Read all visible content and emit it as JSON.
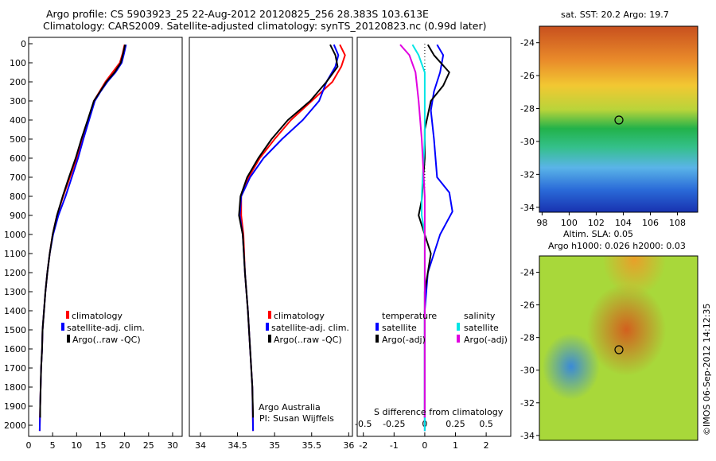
{
  "header": {
    "line1": "Argo profile: CS 5903923_25 22-Aug-2012 20120825_256 28.383S 103.613E",
    "line2": "Climatology: CARS2009. Satellite-adjusted climatology: synTS_20120823.nc (0.99d later)"
  },
  "map_sst": {
    "title": "sat. SST: 20.2 Argo: 19.7",
    "yticks": [
      -24,
      -26,
      -28,
      -30,
      -32,
      -34
    ],
    "xticks": [
      98,
      100,
      102,
      104,
      106,
      108
    ],
    "argo_marker": {
      "lon": 103.6,
      "lat": -28.4
    }
  },
  "map_sla": {
    "title1": "Altim. SLA: 0.05",
    "title2": "Argo h1000: 0.026 h2000: 0.03",
    "yticks": [
      -24,
      -26,
      -28,
      -30,
      -32,
      -34
    ]
  },
  "credit": "©IMOS 06-Sep-2012 14:12:35",
  "chart_data": [
    {
      "type": "line",
      "panel": "temperature",
      "ylim": [
        2050,
        0
      ],
      "xlim": [
        0,
        32
      ],
      "yticks": [
        0,
        100,
        200,
        300,
        400,
        500,
        600,
        700,
        800,
        900,
        1000,
        1100,
        1200,
        1300,
        1400,
        1500,
        1600,
        1700,
        1800,
        1900,
        2000
      ],
      "xticks": [
        0,
        5,
        10,
        15,
        20,
        25,
        30
      ],
      "legend": [
        "climatology",
        "satellite-adj. clim.",
        "Argo(..raw -QC)"
      ],
      "colors": {
        "climatology": "#ff0000",
        "satellite": "#0000ff",
        "argo": "#000000"
      },
      "series": [
        {
          "key": "climatology",
          "values": [
            [
              20.0,
              5
            ],
            [
              19.6,
              50
            ],
            [
              19.0,
              100
            ],
            [
              17.5,
              150
            ],
            [
              16.0,
              200
            ],
            [
              14.8,
              250
            ],
            [
              13.6,
              300
            ],
            [
              12.5,
              400
            ],
            [
              11.3,
              500
            ],
            [
              10.0,
              600
            ],
            [
              8.6,
              700
            ],
            [
              7.2,
              800
            ],
            [
              5.9,
              900
            ],
            [
              5.0,
              1000
            ],
            [
              4.4,
              1100
            ],
            [
              3.9,
              1200
            ],
            [
              3.5,
              1300
            ],
            [
              3.2,
              1400
            ],
            [
              2.9,
              1500
            ],
            [
              2.8,
              1600
            ],
            [
              2.6,
              1700
            ],
            [
              2.5,
              1800
            ],
            [
              2.4,
              1900
            ],
            [
              2.3,
              2030
            ]
          ]
        },
        {
          "key": "satellite",
          "values": [
            [
              20.3,
              5
            ],
            [
              19.9,
              50
            ],
            [
              19.4,
              100
            ],
            [
              18.1,
              150
            ],
            [
              16.4,
              200
            ],
            [
              15.0,
              250
            ],
            [
              13.8,
              300
            ],
            [
              12.6,
              400
            ],
            [
              11.4,
              500
            ],
            [
              10.3,
              600
            ],
            [
              9.0,
              700
            ],
            [
              7.7,
              800
            ],
            [
              6.2,
              900
            ],
            [
              5.1,
              1000
            ],
            [
              4.4,
              1100
            ],
            [
              3.9,
              1200
            ],
            [
              3.5,
              1300
            ],
            [
              3.2,
              1400
            ],
            [
              2.9,
              1500
            ],
            [
              2.8,
              1600
            ],
            [
              2.6,
              1700
            ],
            [
              2.5,
              1800
            ],
            [
              2.4,
              1900
            ],
            [
              2.3,
              2030
            ]
          ]
        },
        {
          "key": "argo",
          "values": [
            [
              20.1,
              5
            ],
            [
              19.7,
              50
            ],
            [
              19.2,
              100
            ],
            [
              17.9,
              150
            ],
            [
              16.2,
              200
            ],
            [
              14.9,
              250
            ],
            [
              13.6,
              300
            ],
            [
              12.3,
              400
            ],
            [
              11.0,
              500
            ],
            [
              9.8,
              600
            ],
            [
              8.4,
              700
            ],
            [
              7.1,
              800
            ],
            [
              5.9,
              900
            ],
            [
              5.0,
              1000
            ],
            [
              4.4,
              1100
            ],
            [
              3.9,
              1200
            ],
            [
              3.5,
              1300
            ],
            [
              3.2,
              1400
            ],
            [
              2.9,
              1500
            ],
            [
              2.8,
              1600
            ],
            [
              2.6,
              1700
            ],
            [
              2.5,
              1800
            ],
            [
              2.4,
              1900
            ],
            [
              2.4,
              1960
            ]
          ]
        }
      ]
    },
    {
      "type": "line",
      "panel": "salinity",
      "ylim": [
        2050,
        0
      ],
      "xlim": [
        33.85,
        36.05
      ],
      "xticks": [
        34,
        34.5,
        35,
        35.5,
        36
      ],
      "legend": [
        "climatology",
        "satellite-adj. clim.",
        "Argo(..raw -QC)"
      ],
      "annotation": [
        "Argo Australia",
        "PI: Susan Wijffels"
      ],
      "series": [
        {
          "key": "climatology",
          "values": [
            [
              35.88,
              5
            ],
            [
              35.95,
              60
            ],
            [
              35.9,
              120
            ],
            [
              35.78,
              200
            ],
            [
              35.5,
              300
            ],
            [
              35.22,
              400
            ],
            [
              35.0,
              500
            ],
            [
              34.8,
              600
            ],
            [
              34.65,
              700
            ],
            [
              34.55,
              800
            ],
            [
              34.55,
              900
            ],
            [
              34.58,
              1000
            ],
            [
              34.6,
              1200
            ],
            [
              34.64,
              1400
            ],
            [
              34.67,
              1600
            ],
            [
              34.7,
              1800
            ],
            [
              34.71,
              2030
            ]
          ]
        },
        {
          "key": "satellite",
          "values": [
            [
              35.8,
              5
            ],
            [
              35.86,
              60
            ],
            [
              35.82,
              120
            ],
            [
              35.7,
              200
            ],
            [
              35.6,
              300
            ],
            [
              35.38,
              400
            ],
            [
              35.1,
              500
            ],
            [
              34.85,
              600
            ],
            [
              34.67,
              700
            ],
            [
              34.55,
              800
            ],
            [
              34.53,
              900
            ],
            [
              34.57,
              1000
            ],
            [
              34.6,
              1200
            ],
            [
              34.64,
              1400
            ],
            [
              34.67,
              1600
            ],
            [
              34.7,
              1800
            ],
            [
              34.71,
              2030
            ]
          ]
        },
        {
          "key": "argo",
          "values": [
            [
              35.75,
              5
            ],
            [
              35.82,
              60
            ],
            [
              35.85,
              120
            ],
            [
              35.7,
              200
            ],
            [
              35.48,
              300
            ],
            [
              35.18,
              400
            ],
            [
              34.96,
              500
            ],
            [
              34.78,
              600
            ],
            [
              34.63,
              700
            ],
            [
              34.54,
              800
            ],
            [
              34.52,
              900
            ],
            [
              34.57,
              1000
            ],
            [
              34.6,
              1200
            ],
            [
              34.64,
              1400
            ],
            [
              34.67,
              1600
            ],
            [
              34.7,
              1800
            ],
            [
              34.71,
              1960
            ]
          ]
        }
      ]
    },
    {
      "type": "line",
      "panel": "difference",
      "ylim": [
        2050,
        0
      ],
      "xlim": [
        -2.2,
        2.8
      ],
      "xticks": [
        -2,
        -1,
        0,
        1,
        2
      ],
      "xticks2": [
        "-0.5",
        "-0.25",
        "0",
        "0.25",
        "0.5"
      ],
      "xlabel": "S difference from climatology",
      "legend_groups": [
        {
          "title": "temperature",
          "items": [
            "satellite",
            "Argo(-adj)"
          ]
        },
        {
          "title": "salinity",
          "items": [
            "satellite",
            "Argo(-adj)"
          ]
        }
      ],
      "series": [
        {
          "key": "t_sat",
          "values": [
            [
              0.4,
              5
            ],
            [
              0.6,
              60
            ],
            [
              0.5,
              150
            ],
            [
              0.3,
              250
            ],
            [
              0.2,
              350
            ],
            [
              0.3,
              500
            ],
            [
              0.4,
              700
            ],
            [
              0.8,
              780
            ],
            [
              0.9,
              880
            ],
            [
              0.5,
              1000
            ],
            [
              0.3,
              1100
            ],
            [
              0.1,
              1200
            ],
            [
              0.0,
              1400
            ],
            [
              0.0,
              1800
            ],
            [
              0.0,
              2030
            ]
          ]
        },
        {
          "key": "t_argo",
          "values": [
            [
              0.1,
              5
            ],
            [
              0.3,
              60
            ],
            [
              0.8,
              150
            ],
            [
              0.6,
              220
            ],
            [
              0.2,
              300
            ],
            [
              0.0,
              450
            ],
            [
              0.0,
              600
            ],
            [
              -0.1,
              820
            ],
            [
              -0.2,
              900
            ],
            [
              0.0,
              1000
            ],
            [
              0.2,
              1100
            ],
            [
              0.0,
              1300
            ],
            [
              0.0,
              1960
            ]
          ]
        },
        {
          "key": "s_sat",
          "values": [
            [
              -0.4,
              5
            ],
            [
              -0.2,
              60
            ],
            [
              0.0,
              150
            ],
            [
              0.0,
              300
            ],
            [
              0.0,
              500
            ],
            [
              -0.1,
              800
            ],
            [
              -0.1,
              900
            ],
            [
              0.0,
              1000
            ],
            [
              0.0,
              1200
            ],
            [
              0.0,
              2030
            ]
          ]
        },
        {
          "key": "s_argo",
          "values": [
            [
              -0.8,
              5
            ],
            [
              -0.5,
              60
            ],
            [
              -0.3,
              150
            ],
            [
              -0.2,
              300
            ],
            [
              -0.1,
              500
            ],
            [
              0.0,
              800
            ],
            [
              0.0,
              1000
            ],
            [
              0.0,
              1200
            ],
            [
              0.0,
              1960
            ]
          ]
        }
      ]
    }
  ]
}
